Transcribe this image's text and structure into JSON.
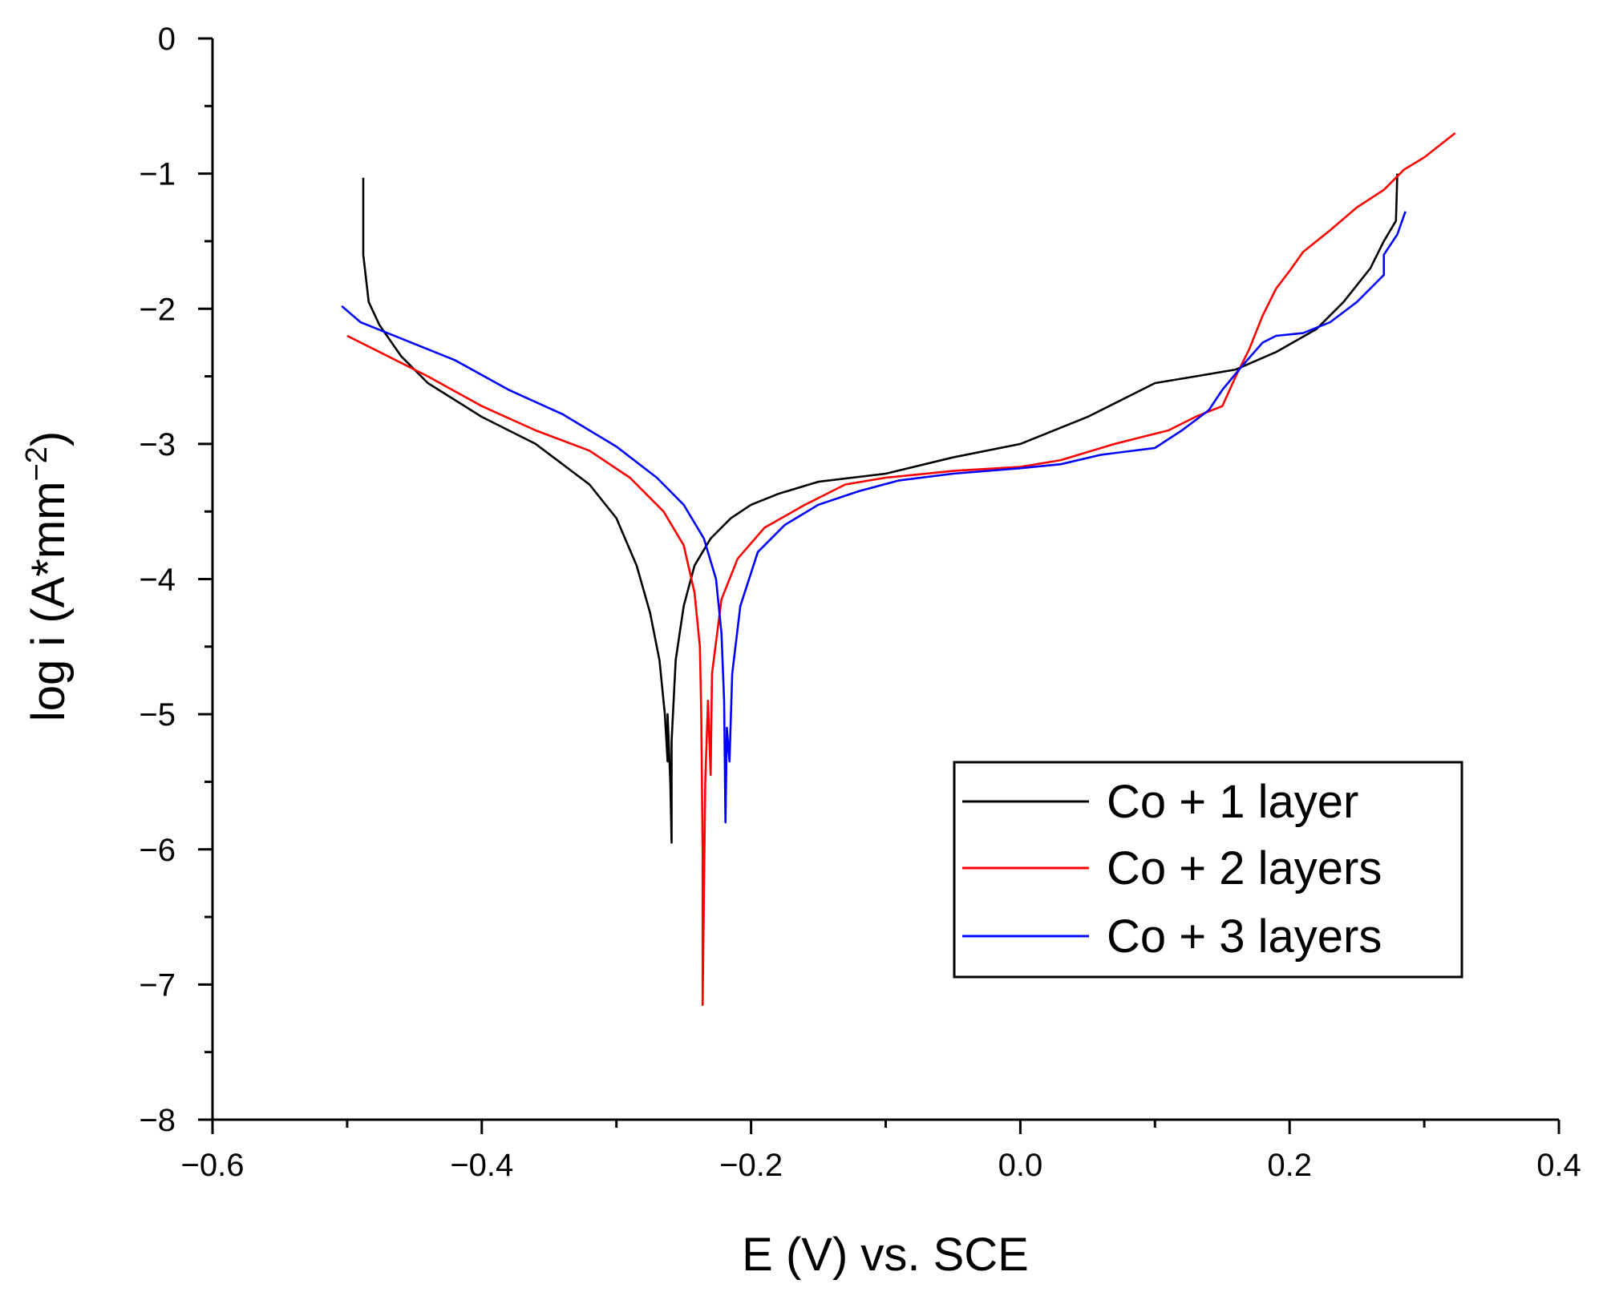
{
  "chart_data": {
    "type": "line",
    "title": "",
    "xlabel": "E (V) vs. SCE",
    "ylabel_main": "log i (A*mm",
    "ylabel_sup": "−2",
    "ylabel_close": ")",
    "xlim": [
      -0.6,
      0.4
    ],
    "ylim": [
      -8,
      0
    ],
    "x_ticks": [
      -0.6,
      -0.4,
      -0.2,
      0.0,
      0.2,
      0.4
    ],
    "x_tick_labels": [
      "−0.6",
      "−0.4",
      "−0.2",
      "0.0",
      "0.2",
      "0.4"
    ],
    "y_ticks": [
      0,
      -1,
      -2,
      -3,
      -4,
      -5,
      -6,
      -7,
      -8
    ],
    "y_tick_labels": [
      "0",
      "−1",
      "−2",
      "−3",
      "−4",
      "−5",
      "−6",
      "−7",
      "−8"
    ],
    "grid": false,
    "legend_position": "bottom-right",
    "series": [
      {
        "name": "Co + 1 layer",
        "color": "#000000",
        "points": [
          [
            -0.488,
            -1.03
          ],
          [
            -0.488,
            -1.6
          ],
          [
            -0.484,
            -1.95
          ],
          [
            -0.476,
            -2.12
          ],
          [
            -0.46,
            -2.35
          ],
          [
            -0.44,
            -2.55
          ],
          [
            -0.4,
            -2.8
          ],
          [
            -0.36,
            -3.0
          ],
          [
            -0.32,
            -3.3
          ],
          [
            -0.3,
            -3.55
          ],
          [
            -0.285,
            -3.9
          ],
          [
            -0.275,
            -4.25
          ],
          [
            -0.268,
            -4.6
          ],
          [
            -0.264,
            -5.0
          ],
          [
            -0.262,
            -5.35
          ],
          [
            -0.262,
            -5.0
          ],
          [
            -0.26,
            -5.5
          ],
          [
            -0.259,
            -5.95
          ],
          [
            -0.259,
            -5.2
          ],
          [
            -0.256,
            -4.6
          ],
          [
            -0.25,
            -4.2
          ],
          [
            -0.242,
            -3.9
          ],
          [
            -0.23,
            -3.7
          ],
          [
            -0.215,
            -3.55
          ],
          [
            -0.2,
            -3.45
          ],
          [
            -0.18,
            -3.37
          ],
          [
            -0.15,
            -3.28
          ],
          [
            -0.1,
            -3.22
          ],
          [
            -0.05,
            -3.1
          ],
          [
            0.0,
            -3.0
          ],
          [
            0.05,
            -2.8
          ],
          [
            0.08,
            -2.65
          ],
          [
            0.1,
            -2.55
          ],
          [
            0.13,
            -2.5
          ],
          [
            0.16,
            -2.45
          ],
          [
            0.19,
            -2.32
          ],
          [
            0.22,
            -2.15
          ],
          [
            0.24,
            -1.95
          ],
          [
            0.26,
            -1.7
          ],
          [
            0.27,
            -1.5
          ],
          [
            0.279,
            -1.35
          ],
          [
            0.28,
            -1.0
          ]
        ]
      },
      {
        "name": "Co + 2 layers",
        "color": "#ff0000",
        "points": [
          [
            -0.5,
            -2.2
          ],
          [
            -0.48,
            -2.3
          ],
          [
            -0.44,
            -2.5
          ],
          [
            -0.4,
            -2.72
          ],
          [
            -0.36,
            -2.9
          ],
          [
            -0.32,
            -3.05
          ],
          [
            -0.29,
            -3.25
          ],
          [
            -0.265,
            -3.5
          ],
          [
            -0.25,
            -3.75
          ],
          [
            -0.242,
            -4.1
          ],
          [
            -0.238,
            -4.5
          ],
          [
            -0.237,
            -5.0
          ],
          [
            -0.236,
            -6.0
          ],
          [
            -0.236,
            -7.15
          ],
          [
            -0.234,
            -5.5
          ],
          [
            -0.232,
            -4.9
          ],
          [
            -0.23,
            -5.45
          ],
          [
            -0.229,
            -4.7
          ],
          [
            -0.222,
            -4.15
          ],
          [
            -0.21,
            -3.85
          ],
          [
            -0.19,
            -3.62
          ],
          [
            -0.16,
            -3.45
          ],
          [
            -0.13,
            -3.3
          ],
          [
            -0.1,
            -3.25
          ],
          [
            -0.05,
            -3.2
          ],
          [
            0.0,
            -3.17
          ],
          [
            0.03,
            -3.12
          ],
          [
            0.07,
            -3.0
          ],
          [
            0.09,
            -2.95
          ],
          [
            0.11,
            -2.9
          ],
          [
            0.13,
            -2.8
          ],
          [
            0.15,
            -2.72
          ],
          [
            0.16,
            -2.5
          ],
          [
            0.17,
            -2.3
          ],
          [
            0.18,
            -2.05
          ],
          [
            0.19,
            -1.85
          ],
          [
            0.2,
            -1.72
          ],
          [
            0.21,
            -1.58
          ],
          [
            0.23,
            -1.42
          ],
          [
            0.25,
            -1.25
          ],
          [
            0.27,
            -1.12
          ],
          [
            0.285,
            -0.97
          ],
          [
            0.3,
            -0.88
          ],
          [
            0.323,
            -0.7
          ]
        ]
      },
      {
        "name": "Co + 3 layers",
        "color": "#0000ff",
        "points": [
          [
            -0.504,
            -1.98
          ],
          [
            -0.49,
            -2.1
          ],
          [
            -0.46,
            -2.22
          ],
          [
            -0.42,
            -2.38
          ],
          [
            -0.38,
            -2.6
          ],
          [
            -0.34,
            -2.78
          ],
          [
            -0.3,
            -3.02
          ],
          [
            -0.27,
            -3.25
          ],
          [
            -0.25,
            -3.45
          ],
          [
            -0.235,
            -3.7
          ],
          [
            -0.226,
            -4.0
          ],
          [
            -0.222,
            -4.4
          ],
          [
            -0.22,
            -4.9
          ],
          [
            -0.219,
            -5.8
          ],
          [
            -0.218,
            -5.1
          ],
          [
            -0.216,
            -5.35
          ],
          [
            -0.214,
            -4.7
          ],
          [
            -0.208,
            -4.2
          ],
          [
            -0.195,
            -3.8
          ],
          [
            -0.175,
            -3.6
          ],
          [
            -0.15,
            -3.45
          ],
          [
            -0.12,
            -3.35
          ],
          [
            -0.09,
            -3.27
          ],
          [
            -0.05,
            -3.22
          ],
          [
            0.0,
            -3.18
          ],
          [
            0.03,
            -3.15
          ],
          [
            0.06,
            -3.08
          ],
          [
            0.1,
            -3.03
          ],
          [
            0.12,
            -2.9
          ],
          [
            0.14,
            -2.75
          ],
          [
            0.15,
            -2.6
          ],
          [
            0.165,
            -2.42
          ],
          [
            0.18,
            -2.25
          ],
          [
            0.19,
            -2.2
          ],
          [
            0.21,
            -2.18
          ],
          [
            0.23,
            -2.1
          ],
          [
            0.25,
            -1.95
          ],
          [
            0.265,
            -1.8
          ],
          [
            0.27,
            -1.75
          ],
          [
            0.27,
            -1.6
          ],
          [
            0.28,
            -1.45
          ],
          [
            0.286,
            -1.28
          ]
        ]
      }
    ]
  }
}
